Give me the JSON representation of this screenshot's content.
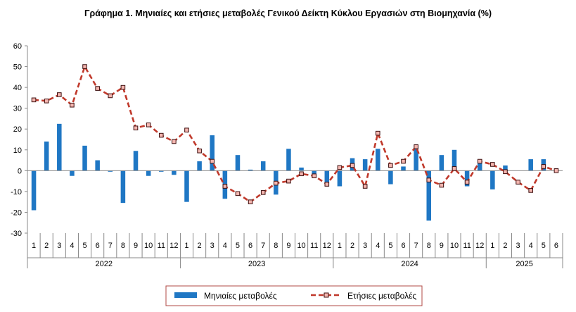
{
  "chart_data": {
    "type": "bar+line",
    "title": "Γράφημα 1. Μηνιαίες και ετήσιες μεταβολές  Γενικού Δείκτη Κύκλου Εργασιών στη Βιομηχανία (%)",
    "ylim": [
      -30,
      60
    ],
    "yticks": [
      -30,
      -20,
      -10,
      0,
      10,
      20,
      30,
      40,
      50,
      60
    ],
    "grid": false,
    "legend_position": "bottom",
    "years": [
      {
        "label": "2022",
        "months": [
          "1",
          "2",
          "3",
          "4",
          "5",
          "6",
          "7",
          "8",
          "9",
          "10",
          "11",
          "12"
        ]
      },
      {
        "label": "2023",
        "months": [
          "1",
          "2",
          "3",
          "4",
          "5",
          "6",
          "7",
          "8",
          "9",
          "10",
          "11",
          "12"
        ]
      },
      {
        "label": "2024",
        "months": [
          "1",
          "2",
          "3",
          "4",
          "5",
          "6",
          "7",
          "8",
          "9",
          "10",
          "11",
          "12"
        ]
      },
      {
        "label": "2025",
        "months": [
          "1",
          "2",
          "3",
          "4",
          "5",
          "6"
        ]
      }
    ],
    "series": [
      {
        "name": "Μηνιαίες μεταβολές",
        "kind": "bar",
        "color": "#1f77c4",
        "values": [
          -19,
          14,
          22.5,
          -2.5,
          12,
          5,
          -0.5,
          -15.5,
          9.5,
          -2.5,
          -0.5,
          -2,
          -15,
          4.5,
          17,
          -13.5,
          7.5,
          0.5,
          4.5,
          -11.5,
          10.5,
          1.5,
          -1.5,
          -5.5,
          -7.5,
          6,
          5.5,
          10.5,
          -6.5,
          2,
          11,
          -24,
          7.5,
          10,
          -7.5,
          4.5,
          -9,
          2.5,
          0,
          5.5,
          5.5,
          0
        ]
      },
      {
        "name": "Ετήσιες μεταβολές",
        "kind": "line",
        "color": "#c0392b",
        "marker_fill": "#f4b6b0",
        "values": [
          34,
          33.5,
          36.5,
          31.5,
          50,
          39.5,
          36,
          40,
          20.5,
          22,
          17,
          14,
          19.5,
          9.5,
          4.5,
          -7.5,
          -11,
          -15,
          -10.5,
          -6,
          -5,
          -1.5,
          -2.5,
          -6.5,
          1.5,
          2.5,
          -7.5,
          18,
          2.5,
          4.5,
          11.5,
          -4.5,
          -7,
          1,
          -5.5,
          4.5,
          3,
          -0.5,
          -5.5,
          -9.5,
          2,
          0
        ]
      }
    ]
  }
}
